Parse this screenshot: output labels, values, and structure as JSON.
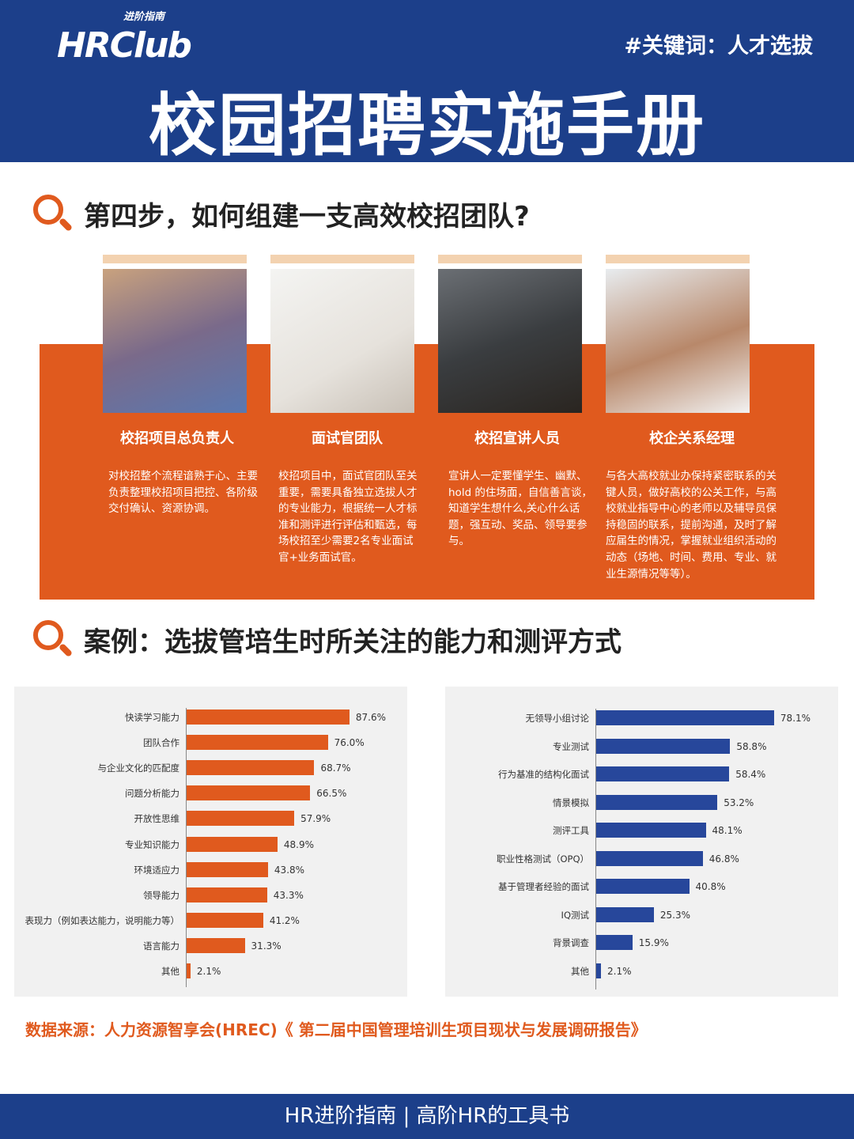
{
  "header": {
    "logo_text": "HRClub",
    "logo_sub": "进阶指南",
    "keyword": "#关键词：人才选拔",
    "title": "校园招聘实施手册"
  },
  "section1": {
    "title": "第四步，如何组建一支高效校招团队?",
    "roles": [
      {
        "name": "校招项目总负责人",
        "desc": "对校招整个流程谙熟于心、主要负责整理校招项目把控、各阶级交付确认、资源协调。"
      },
      {
        "name": "面试官团队",
        "desc": "校招项目中，面试官团队至关重要，需要具备独立选拔人才的专业能力，根据统一人才标准和测评进行评估和甄选，每场校招至少需要2名专业面试官+业务面试官。"
      },
      {
        "name": "校招宣讲人员",
        "desc": "宣讲人一定要懂学生、幽默、hold 的住场面，自信善言谈， 知道学生想什么,关心什么话 题，强互动、奖品、领导要参与。"
      },
      {
        "name": "校企关系经理",
        "desc": "与各大高校就业办保持紧密联系的关键人员，做好高校的公关工作，与高校就业指导中心的老师以及辅导员保持稳固的联系，提前沟通，及时了解应届生的情况，掌握就业组织活动的动态（场地、时间、费用、专业、就业生源情况等等）。"
      }
    ]
  },
  "section2": {
    "title": "案例：选拔管培生时所关注的能力和测评方式"
  },
  "chart_data": [
    {
      "type": "bar",
      "orientation": "horizontal",
      "color": "#e05a1e",
      "unit": "%",
      "categories": [
        "快读学习能力",
        "团队合作",
        "与企业文化的匹配度",
        "问题分析能力",
        "开放性思维",
        "专业知识能力",
        "环境适应力",
        "领导能力",
        "表现力（例如表达能力，说明能力等）",
        "语言能力",
        "其他"
      ],
      "values": [
        87.6,
        76.0,
        68.7,
        66.5,
        57.9,
        48.9,
        43.8,
        43.3,
        41.2,
        31.3,
        2.1
      ],
      "labels": [
        "87.6%",
        "76.0%",
        "68.7%",
        "66.5%",
        "57.9%",
        "48.9%",
        "43.8%",
        "43.3%",
        "41.2%",
        "31.3%",
        "2.1%"
      ]
    },
    {
      "type": "bar",
      "orientation": "horizontal",
      "color": "#27479b",
      "unit": "%",
      "categories": [
        "无领导小组讨论",
        "专业测试",
        "行为基准的结构化面试",
        "情景模拟",
        "测评工具",
        "职业性格测试（OPQ）",
        "基于管理者经验的面试",
        "IQ测试",
        "背景调查",
        "其他"
      ],
      "values": [
        78.1,
        58.8,
        58.4,
        53.2,
        48.1,
        46.8,
        40.8,
        25.3,
        15.9,
        2.1
      ],
      "labels": [
        "78.1%",
        "58.8%",
        "58.4%",
        "53.2%",
        "48.1%",
        "46.8%",
        "40.8%",
        "25.3%",
        "15.9%",
        "2.1%"
      ]
    }
  ],
  "source": "数据来源：人力资源智享会(HREC)《 第二届中国管理培训生项目现状与发展调研报告》",
  "footer": "HR进阶指南 |  高阶HR的工具书",
  "colors": {
    "header": "#1c3f8a",
    "accent": "#e05a1e",
    "blue_bar": "#27479b"
  }
}
